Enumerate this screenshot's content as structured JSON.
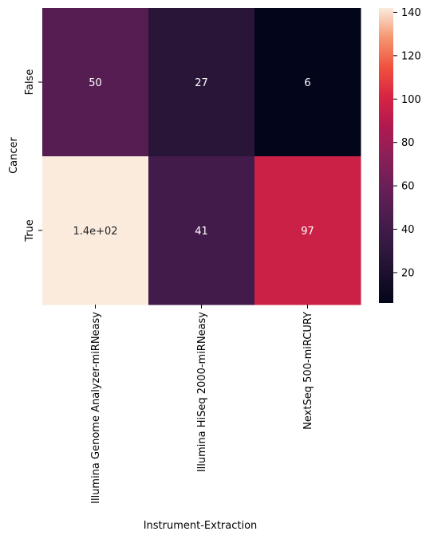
{
  "chart_data": {
    "type": "heatmap",
    "title": "",
    "xlabel": "Instrument-Extraction",
    "ylabel": "Cancer",
    "x_categories": [
      "Illumina Genome Analyzer-miRNeasy",
      "Illumina HiSeq 2000-miRNeasy",
      "NextSeq 500-miRCURY"
    ],
    "y_categories": [
      "False",
      "True"
    ],
    "values": [
      [
        50,
        27,
        6
      ],
      [
        142,
        41,
        97
      ]
    ],
    "annotations": [
      [
        "50",
        "27",
        "6"
      ],
      [
        "1.4e+02",
        "41",
        "97"
      ]
    ],
    "colorbar": {
      "min": 6,
      "max": 142,
      "ticks": [
        20,
        40,
        60,
        80,
        100,
        120,
        140
      ],
      "tick_labels": [
        "20",
        "40",
        "60",
        "80",
        "100",
        "120",
        "140"
      ],
      "colormap": "rocket"
    }
  }
}
